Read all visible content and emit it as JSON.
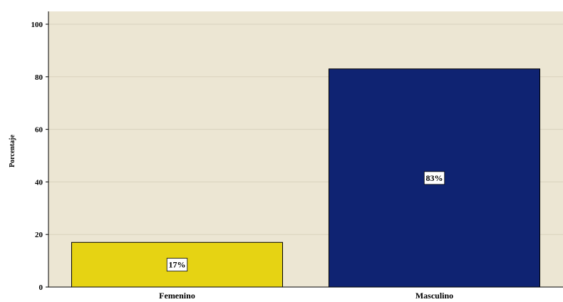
{
  "chart_data": {
    "type": "bar",
    "categories": [
      "Femenino",
      "Masculino"
    ],
    "values": [
      17,
      83
    ],
    "data_labels": [
      "17%",
      "83%"
    ],
    "ylabel": "Porcentaje",
    "ylim": [
      0,
      100
    ],
    "yticks": [
      "0",
      "20",
      "40",
      "60",
      "80",
      "100"
    ],
    "grid": true,
    "legend": "none",
    "colors": {
      "plot_background": "#ece6d3",
      "gridline": "#d9d2bd",
      "bars": [
        "#e6d313",
        "#0f2372"
      ]
    }
  }
}
